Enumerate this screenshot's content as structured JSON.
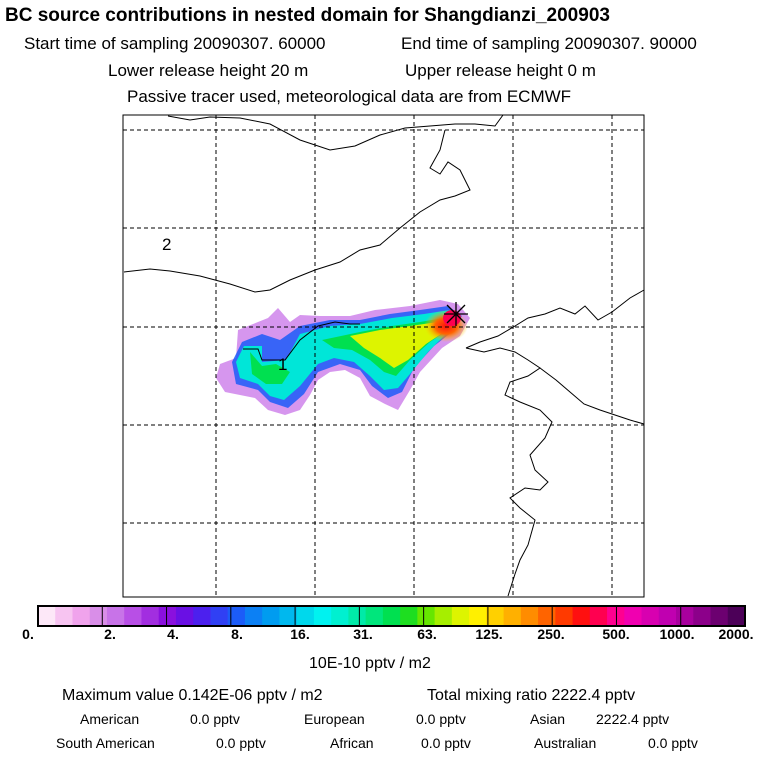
{
  "title": "BC  source contributions in nested domain for Shangdianzi_200903",
  "sampling": {
    "start": "Start time of sampling 20090307. 60000",
    "end": "End time of sampling 20090307. 90000"
  },
  "release": {
    "lower": "Lower release height   20 m",
    "upper": "Upper release height    0 m"
  },
  "tracer_note": "Passive tracer used, meteorological data are from ECMWF",
  "map": {
    "region_labels": [
      "2",
      "1"
    ],
    "receptor_marker": "star-cross"
  },
  "colorbar": {
    "ticks": [
      "0.",
      "2.",
      "4.",
      "8.",
      "16.",
      "31.",
      "63.",
      "125.",
      "250.",
      "500.",
      "1000.",
      "2000."
    ],
    "units": "10E-10 pptv / m2",
    "colors": [
      "#fde8f8",
      "#f7c4f1",
      "#f0a3ec",
      "#d98ee8",
      "#c873e8",
      "#b84fe6",
      "#a22ee0",
      "#8a10de",
      "#6a10e4",
      "#4c20ee",
      "#3040f4",
      "#1c5cf8",
      "#0c80f4",
      "#009cf0",
      "#00b8ee",
      "#00d8ec",
      "#00f2f0",
      "#00f0d0",
      "#00eaa8",
      "#00e67c",
      "#00e050",
      "#1ede20",
      "#66e600",
      "#a6ee00",
      "#ddf400",
      "#fff000",
      "#ffd000",
      "#ffb000",
      "#ff8c00",
      "#ff6400",
      "#ff3a00",
      "#ff1010",
      "#ff0050",
      "#ff0090",
      "#f000b0",
      "#d800b0",
      "#c000b0",
      "#a8009e",
      "#8c008a",
      "#6c0070",
      "#4c0058"
    ]
  },
  "stats": {
    "max_label": "Maximum value  0.142E-06 pptv / m2",
    "total_label": "Total mixing ratio     2222.4 pptv",
    "regions": [
      {
        "name": "American",
        "value": "0.0 pptv"
      },
      {
        "name": "European",
        "value": "0.0 pptv"
      },
      {
        "name": "Asian",
        "value": "2222.4 pptv"
      },
      {
        "name": "South American",
        "value": "0.0 pptv"
      },
      {
        "name": "African",
        "value": "0.0 pptv"
      },
      {
        "name": "Australian",
        "value": "0.0 pptv"
      }
    ]
  }
}
